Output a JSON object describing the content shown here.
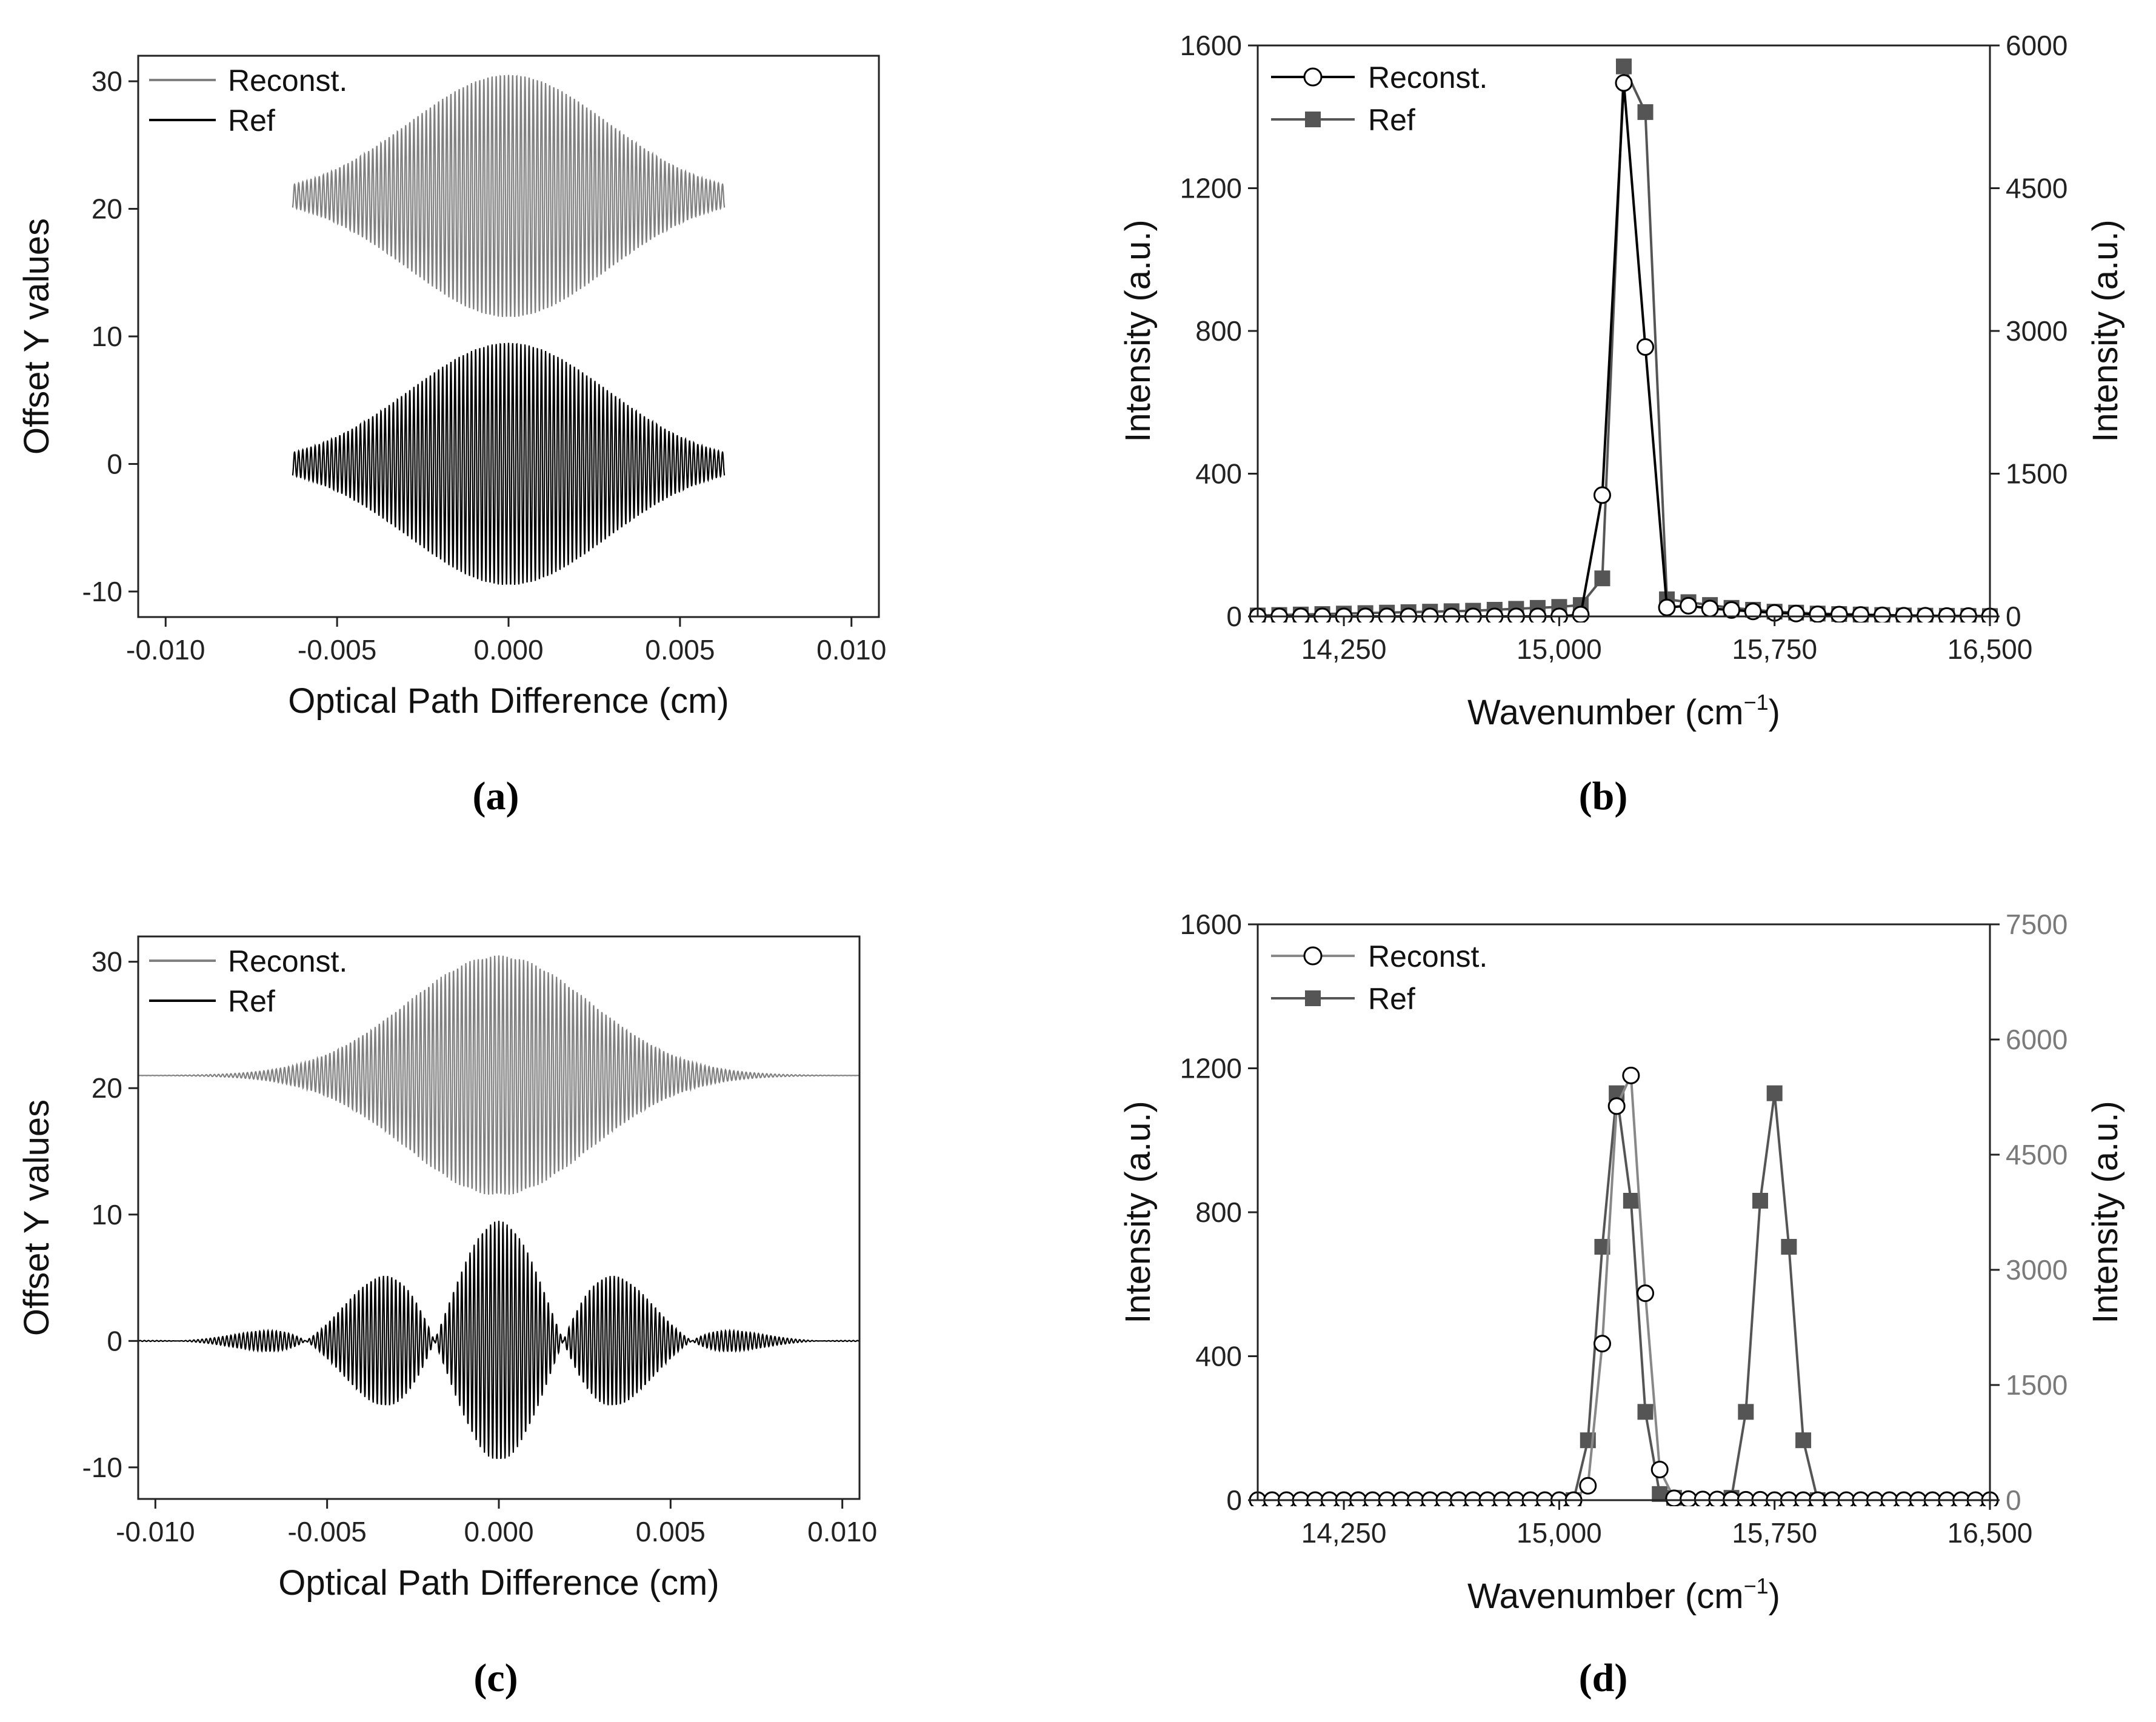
{
  "chart_data": [
    {
      "id": "a",
      "panel_label": "(a)",
      "type": "line",
      "xlabel": "Optical Path Difference (cm)",
      "ylabel": "Offset Y values",
      "xlim": [
        -0.0108,
        0.0108
      ],
      "ylim": [
        -12,
        32
      ],
      "xticks": [
        -0.01,
        -0.005,
        0.0,
        0.005,
        0.01
      ],
      "xtick_labels": [
        "-0.010",
        "-0.005",
        "0.000",
        "0.005",
        "0.010"
      ],
      "yticks": [
        -10,
        0,
        10,
        20,
        30
      ],
      "ytick_labels": [
        "-10",
        "0",
        "10",
        "20",
        "30"
      ],
      "legend_position": "top-left",
      "series": [
        {
          "name": "Reconst.",
          "color": "#808080",
          "offset": 21,
          "shape": "gaussian",
          "x_range": [
            -0.0063,
            0.0063
          ],
          "peak_amplitude": 9.5,
          "edge_amplitude": 1.0
        },
        {
          "name": "Ref",
          "color": "#000000",
          "offset": 0,
          "shape": "gaussian",
          "x_range": [
            -0.0063,
            0.0063
          ],
          "peak_amplitude": 9.5,
          "edge_amplitude": 1.0
        }
      ]
    },
    {
      "id": "b",
      "panel_label": "(b)",
      "type": "line",
      "xlabel": "Wavenumber (cm",
      "xlabel_sup": "−1",
      "xlabel_end": ")",
      "ylabel": "Intensity (a.u.)",
      "ylabel_right": "Intensity (a.u.)",
      "xlim": [
        13950,
        16500
      ],
      "ylim": [
        0,
        1600
      ],
      "ylim_right": [
        0,
        6000
      ],
      "xticks": [
        14250,
        15000,
        15750,
        16500
      ],
      "xtick_labels": [
        "14,250",
        "15,000",
        "15,750",
        "16,500"
      ],
      "yticks": [
        0,
        400,
        800,
        1200,
        1600
      ],
      "ytick_labels": [
        "0",
        "400",
        "800",
        "1200",
        "1600"
      ],
      "yticks_right": [
        0,
        1500,
        3000,
        4500,
        6000
      ],
      "ytick_labels_right": [
        "0",
        "1500",
        "3000",
        "4500",
        "6000"
      ],
      "legend_position": "top-left",
      "series": [
        {
          "name": "Reconst.",
          "axis": "left",
          "color": "#000000",
          "marker": "circle",
          "x": [
            13950,
            14025,
            14100,
            14175,
            14250,
            14325,
            14400,
            14475,
            14550,
            14625,
            14700,
            14775,
            14850,
            14925,
            15000,
            15075,
            15150,
            15225,
            15300,
            15375,
            15450,
            15525,
            15600,
            15675,
            15750,
            15825,
            15900,
            15975,
            16050,
            16125,
            16200,
            16275,
            16350,
            16425,
            16500
          ],
          "y": [
            0,
            0,
            0,
            0,
            0,
            0,
            0,
            0,
            0,
            0,
            0,
            0,
            0,
            0,
            0,
            5,
            340,
            1495,
            755,
            25,
            30,
            22,
            18,
            14,
            10,
            8,
            6,
            5,
            4,
            3,
            2,
            2,
            1,
            1,
            0
          ]
        },
        {
          "name": "Ref",
          "axis": "right",
          "color": "#555555",
          "marker": "square",
          "x": [
            13950,
            14025,
            14100,
            14175,
            14250,
            14325,
            14400,
            14475,
            14550,
            14625,
            14700,
            14775,
            14850,
            14925,
            15000,
            15075,
            15150,
            15225,
            15300,
            15375,
            15450,
            15525,
            15600,
            15675,
            15750,
            15825,
            15900,
            15975,
            16050,
            16125,
            16200,
            16275,
            16350,
            16425,
            16500
          ],
          "y": [
            10,
            15,
            20,
            25,
            30,
            35,
            40,
            45,
            50,
            55,
            60,
            70,
            80,
            90,
            100,
            120,
            400,
            5780,
            5300,
            180,
            150,
            120,
            90,
            70,
            50,
            40,
            30,
            25,
            20,
            15,
            10,
            8,
            6,
            5,
            4
          ]
        }
      ]
    },
    {
      "id": "c",
      "panel_label": "(c)",
      "type": "line",
      "xlabel": "Optical Path Difference (cm)",
      "ylabel": "Offset Y values",
      "xlim": [
        -0.0105,
        0.0105
      ],
      "ylim": [
        -12.5,
        32
      ],
      "xticks": [
        -0.01,
        -0.005,
        0.0,
        0.005,
        0.01
      ],
      "xtick_labels": [
        "-0.010",
        "-0.005",
        "0.000",
        "0.005",
        "0.010"
      ],
      "yticks": [
        -10,
        0,
        10,
        20,
        30
      ],
      "ytick_labels": [
        "-10",
        "0",
        "10",
        "20",
        "30"
      ],
      "legend_position": "top-left",
      "series": [
        {
          "name": "Reconst.",
          "color": "#808080",
          "offset": 21,
          "shape": "gaussian",
          "x_range": [
            -0.0105,
            0.0105
          ],
          "peak_amplitude": 9.5
        },
        {
          "name": "Ref",
          "color": "#000000",
          "offset": 0,
          "shape": "beat",
          "x_range": [
            -0.0105,
            0.0105
          ],
          "peak_amplitude": 9.5,
          "beat_period": 0.00375
        }
      ]
    },
    {
      "id": "d",
      "panel_label": "(d)",
      "type": "line",
      "xlabel": "Wavenumber (cm",
      "xlabel_sup": "−1",
      "xlabel_end": ")",
      "ylabel": "Intensity (a.u.)",
      "ylabel_right": "Intensity (a.u.)",
      "xlim": [
        13950,
        16500
      ],
      "ylim": [
        0,
        1600
      ],
      "ylim_right": [
        0,
        7500
      ],
      "xticks": [
        14250,
        15000,
        15750,
        16500
      ],
      "xtick_labels": [
        "14,250",
        "15,000",
        "15,750",
        "16,500"
      ],
      "yticks": [
        0,
        400,
        800,
        1200,
        1600
      ],
      "ytick_labels": [
        "0",
        "400",
        "800",
        "1200",
        "1600"
      ],
      "yticks_right": [
        0,
        1500,
        3000,
        4500,
        6000,
        7500
      ],
      "ytick_labels_right": [
        "0",
        "1500",
        "3000",
        "4500",
        "6000",
        "7500"
      ],
      "right_axis_color": "#7a7a7a",
      "legend_position": "top-left",
      "series": [
        {
          "name": "Reconst.",
          "axis": "left",
          "color": "#888888",
          "marker": "circle",
          "x": [
            13950,
            14000,
            14050,
            14100,
            14150,
            14200,
            14250,
            14300,
            14350,
            14400,
            14450,
            14500,
            14550,
            14600,
            14650,
            14700,
            14750,
            14800,
            14850,
            14900,
            14950,
            15000,
            15050,
            15100,
            15150,
            15200,
            15250,
            15300,
            15350,
            15400,
            15450,
            15500,
            15550,
            15600,
            15650,
            15700,
            15750,
            15800,
            15850,
            15900,
            15950,
            16000,
            16050,
            16100,
            16150,
            16200,
            16250,
            16300,
            16350,
            16400,
            16450,
            16500
          ],
          "y": [
            0,
            0,
            0,
            0,
            0,
            0,
            0,
            0,
            0,
            0,
            0,
            0,
            0,
            0,
            0,
            0,
            0,
            0,
            0,
            0,
            0,
            0,
            0,
            40,
            435,
            1095,
            1180,
            575,
            85,
            5,
            3,
            2,
            2,
            1,
            1,
            1,
            0,
            0,
            0,
            0,
            0,
            0,
            0,
            0,
            0,
            0,
            0,
            0,
            0,
            0,
            0,
            0
          ]
        },
        {
          "name": "Ref",
          "axis": "right",
          "color": "#555555",
          "marker": "square",
          "x": [
            15050,
            15100,
            15150,
            15200,
            15250,
            15300,
            15350,
            15400,
            15600,
            15650,
            15700,
            15750,
            15800,
            15850,
            15900
          ],
          "y": [
            0,
            780,
            3300,
            5300,
            3900,
            1150,
            80,
            30,
            30,
            1150,
            3900,
            5300,
            3300,
            780,
            0
          ]
        }
      ]
    }
  ]
}
